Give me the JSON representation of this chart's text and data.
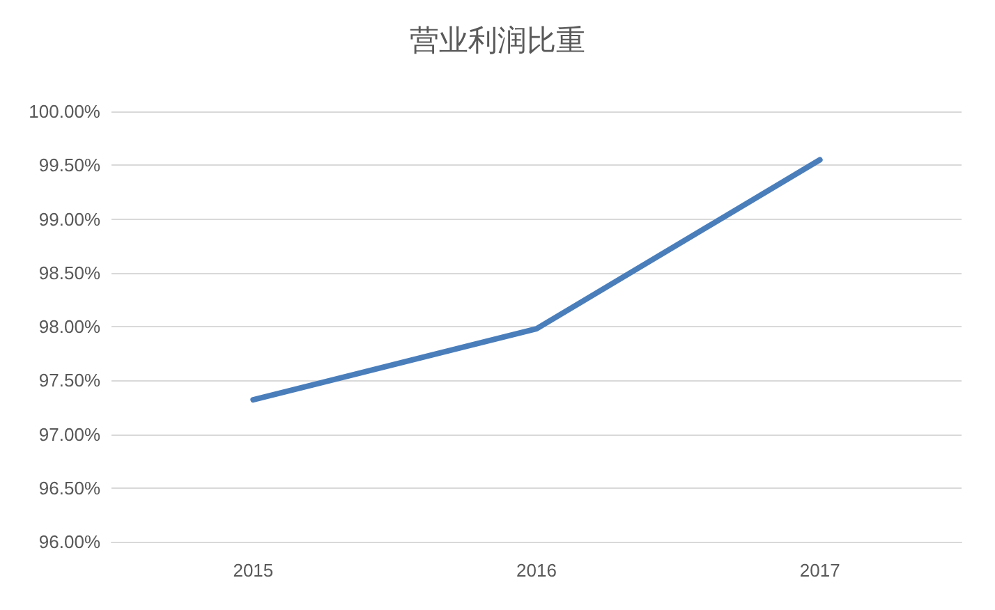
{
  "chart_data": {
    "type": "line",
    "title": "营业利润比重",
    "categories": [
      "2015",
      "2016",
      "2017"
    ],
    "series": [
      {
        "color": "#4a7ebb",
        "values": [
          97.32,
          97.98,
          99.55
        ]
      }
    ],
    "ylim": [
      96,
      100
    ],
    "yticks": [
      {
        "value": 96,
        "label": "96.00%"
      },
      {
        "value": 96.5,
        "label": "96.50%"
      },
      {
        "value": 97,
        "label": "97.00%"
      },
      {
        "value": 97.5,
        "label": "97.50%"
      },
      {
        "value": 98,
        "label": "98.00%"
      },
      {
        "value": 98.5,
        "label": "98.50%"
      },
      {
        "value": 99,
        "label": "99.00%"
      },
      {
        "value": 99.5,
        "label": "99.50%"
      },
      {
        "value": 100,
        "label": "100.00%"
      }
    ],
    "grid": "y",
    "marker": "none",
    "line_style": "solid"
  }
}
